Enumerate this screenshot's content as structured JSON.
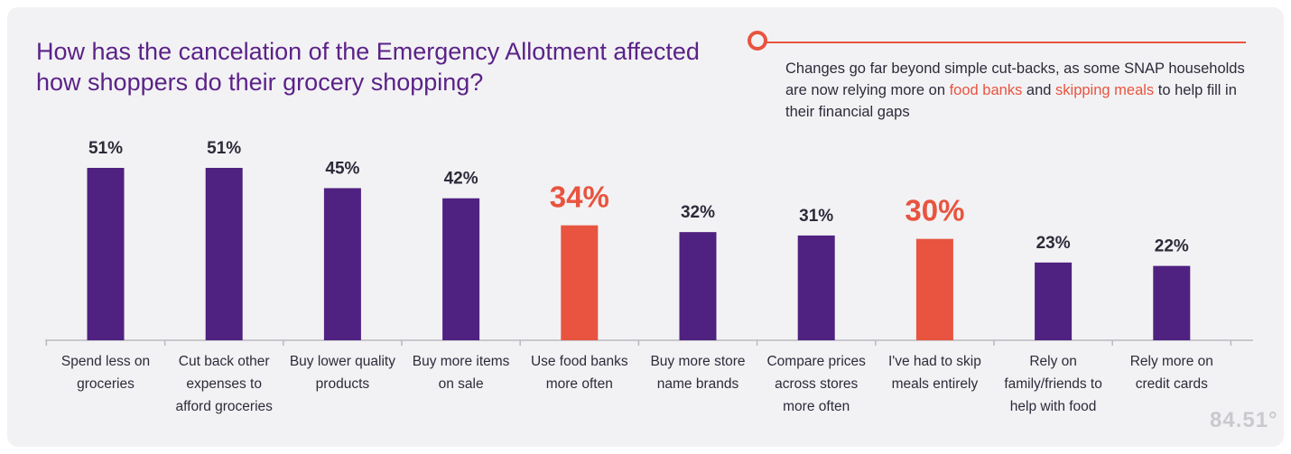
{
  "header": {
    "title": "How has the cancelation of the Emergency Allotment affected how shoppers do their grocery shopping?"
  },
  "callout": {
    "text_before": "Changes go far beyond simple cut-backs, as some SNAP households are now relying more on ",
    "highlight_1": "food banks",
    "text_middle": " and ",
    "highlight_2": "skipping meals",
    "text_after": " to help fill in their financial gaps"
  },
  "brand": {
    "logo_text": "84.51°"
  },
  "colors": {
    "primary": "#4f2180",
    "highlight": "#e8543f",
    "label_dark": "#2d2b3a",
    "title": "#5b2288"
  },
  "chart_data": {
    "type": "bar",
    "title": "How has the cancelation of the Emergency Allotment affected how shoppers do their grocery shopping?",
    "xlabel": "",
    "ylabel": "",
    "ylim": [
      0,
      51
    ],
    "grid": false,
    "categories": [
      "Spend less on groceries",
      "Cut back other expenses to afford groceries",
      "Buy lower quality products",
      "Buy more items on sale",
      "Use food banks more often",
      "Buy more store name brands",
      "Compare prices across stores more often",
      "I've had to skip meals entirely",
      "Rely on family/friends to help with food",
      "Rely more on credit cards"
    ],
    "category_lines": [
      [
        "Spend less on",
        "groceries"
      ],
      [
        "Cut back other",
        "expenses to",
        "afford groceries"
      ],
      [
        "Buy lower quality",
        "products"
      ],
      [
        "Buy more items",
        "on sale"
      ],
      [
        "Use food banks",
        "more often"
      ],
      [
        "Buy more store",
        "name brands"
      ],
      [
        "Compare prices",
        "across stores",
        "more often"
      ],
      [
        "I've had to skip",
        "meals entirely"
      ],
      [
        "Rely on",
        "family/friends to",
        "help with food"
      ],
      [
        "Rely more on",
        "credit cards"
      ]
    ],
    "values": [
      51,
      51,
      45,
      42,
      34,
      32,
      31,
      30,
      23,
      22
    ],
    "labels": [
      "51%",
      "51%",
      "45%",
      "42%",
      "34%",
      "32%",
      "31%",
      "30%",
      "23%",
      "22%"
    ],
    "highlighted": [
      false,
      false,
      false,
      false,
      true,
      false,
      false,
      true,
      false,
      false
    ]
  }
}
